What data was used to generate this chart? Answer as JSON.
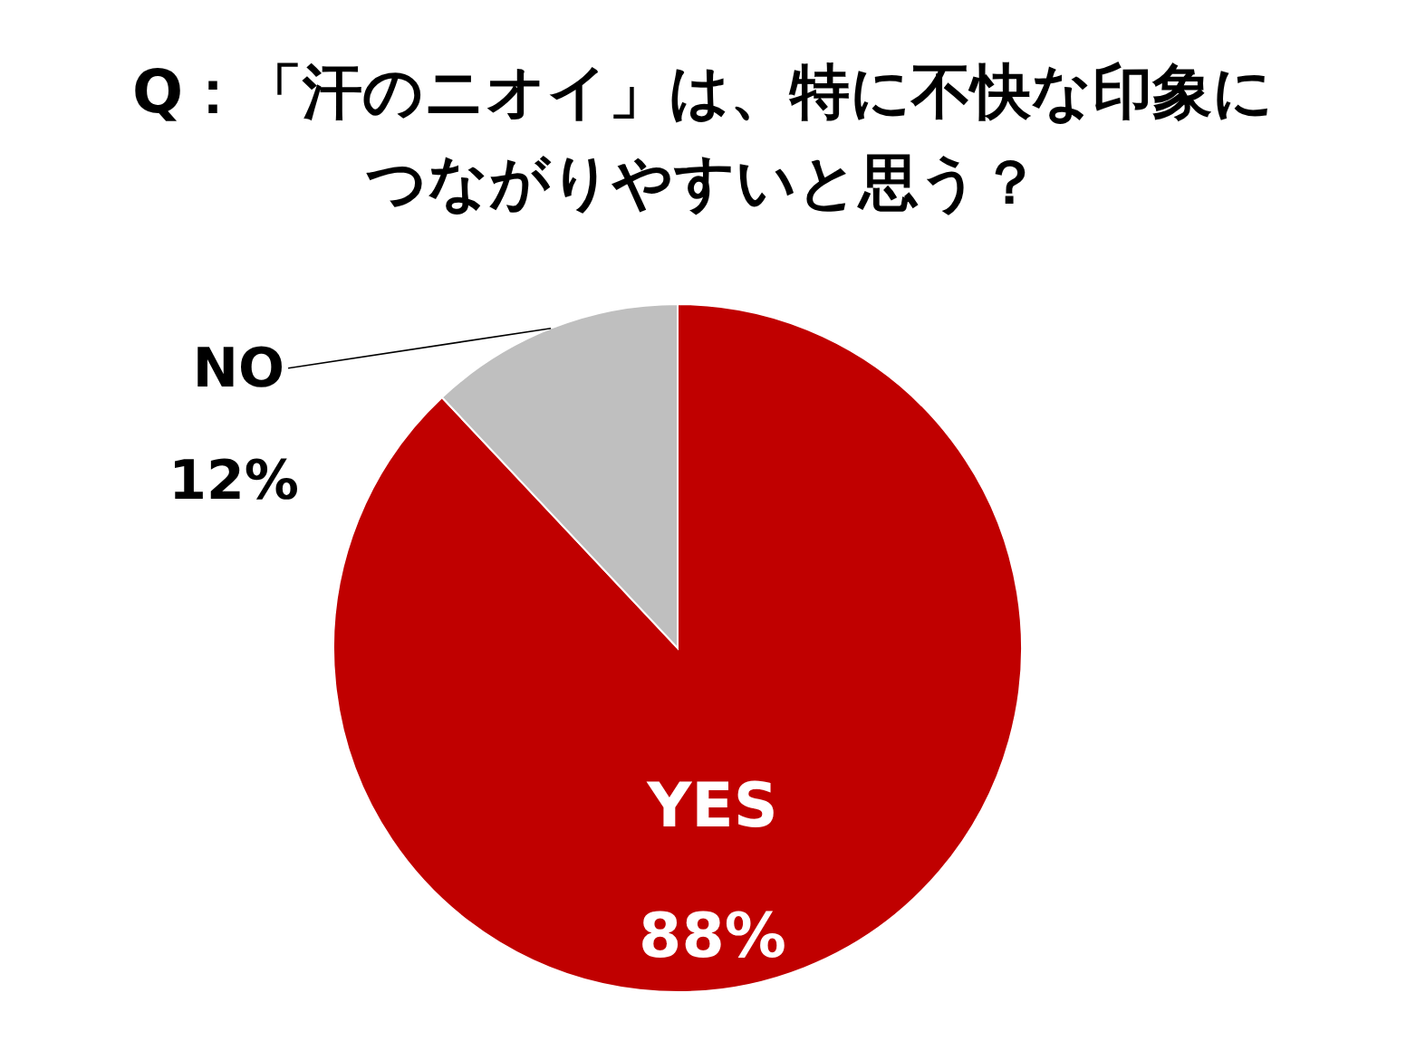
{
  "chart_data": {
    "type": "pie",
    "title": "Q：「汗のニオイ」は、特に不快な印象につながりやすいと思う？",
    "categories": [
      "YES",
      "NO"
    ],
    "values": [
      88,
      12
    ],
    "colors": [
      "#c00000",
      "#bfbfbf"
    ],
    "value_labels": [
      "88%",
      "12%"
    ]
  }
}
